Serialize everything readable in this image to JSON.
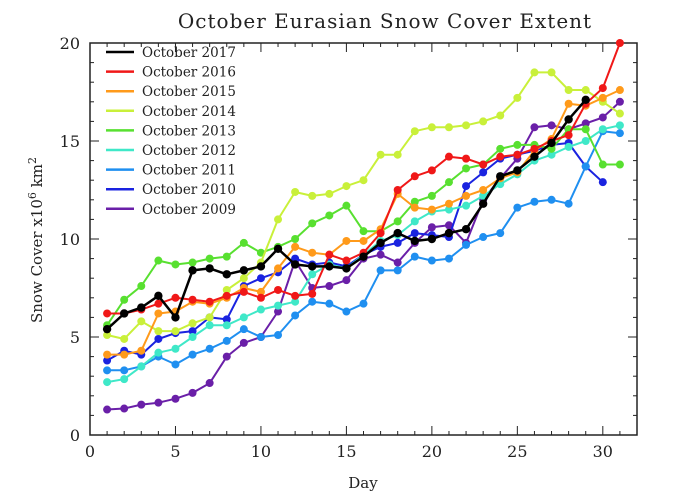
{
  "chart_data": {
    "type": "line",
    "title": "October Eurasian Snow Cover Extent",
    "xlabel": "Day",
    "ylabel_prefix": "Snow Cover x10",
    "ylabel_exp": "6",
    "ylabel_suffix": " km",
    "ylabel_exp2": "2",
    "xlim": [
      0,
      32
    ],
    "ylim": [
      0,
      20
    ],
    "xticks": [
      0,
      5,
      10,
      15,
      20,
      25,
      30
    ],
    "yticks": [
      0,
      5,
      10,
      15,
      20
    ],
    "xtick_labels": [
      "0",
      "5",
      "10",
      "15",
      "20",
      "25",
      "30"
    ],
    "ytick_labels": [
      "0",
      "5",
      "10",
      "15",
      "20"
    ],
    "grid": false,
    "legend_position": "top-left",
    "series": [
      {
        "name": "October 2009",
        "color": "#6a1fa8",
        "width": 2,
        "x": [
          1,
          2,
          3,
          4,
          5,
          6,
          7,
          8,
          9,
          10,
          11,
          12,
          13,
          14,
          15,
          16,
          17,
          18,
          19,
          20,
          21,
          22,
          23,
          24,
          25,
          26,
          27,
          28,
          29,
          30,
          31
        ],
        "y": [
          1.3,
          1.35,
          1.55,
          1.65,
          1.85,
          2.15,
          2.65,
          4.0,
          4.7,
          5.0,
          6.3,
          8.9,
          7.5,
          7.6,
          7.9,
          9.0,
          9.2,
          8.8,
          9.8,
          10.6,
          10.7,
          9.8,
          12.0,
          13.1,
          14.1,
          15.7,
          15.8,
          15.6,
          15.9,
          16.2,
          17.0
        ]
      },
      {
        "name": "October 2010",
        "color": "#1a23e0",
        "width": 2,
        "x": [
          1,
          2,
          3,
          4,
          5,
          6,
          7,
          8,
          9,
          10,
          11,
          12,
          13,
          14,
          15,
          16,
          17,
          18,
          19,
          20,
          21,
          22,
          23,
          24,
          25,
          26,
          27,
          28,
          29,
          30
        ],
        "y": [
          3.8,
          4.3,
          4.1,
          4.9,
          5.2,
          5.3,
          6.0,
          5.9,
          7.6,
          8.0,
          8.3,
          9.0,
          8.7,
          8.8,
          8.6,
          9.2,
          9.6,
          9.8,
          10.3,
          10.2,
          10.1,
          12.7,
          13.4,
          14.1,
          14.3,
          14.5,
          14.8,
          14.9,
          13.7,
          12.9
        ]
      },
      {
        "name": "October 2011",
        "color": "#1f8ff0",
        "width": 2,
        "x": [
          1,
          2,
          3,
          4,
          5,
          6,
          7,
          8,
          9,
          10,
          11,
          12,
          13,
          14,
          15,
          16,
          17,
          18,
          19,
          20,
          21,
          22,
          23,
          24,
          25,
          26,
          27,
          28,
          29,
          30,
          31
        ],
        "y": [
          3.3,
          3.3,
          3.5,
          4.0,
          3.6,
          4.1,
          4.4,
          4.8,
          5.4,
          5.0,
          5.1,
          6.1,
          6.8,
          6.7,
          6.3,
          6.7,
          8.4,
          8.4,
          9.1,
          8.9,
          9.0,
          9.7,
          10.1,
          10.3,
          11.6,
          11.9,
          12.0,
          11.8,
          13.7,
          15.5,
          15.4
        ]
      },
      {
        "name": "October 2012",
        "color": "#3fe8c8",
        "width": 2,
        "x": [
          1,
          2,
          3,
          4,
          5,
          6,
          7,
          8,
          9,
          10,
          11,
          12,
          13,
          14,
          15,
          16,
          17,
          18,
          19,
          20,
          21,
          22,
          23,
          24,
          25,
          26,
          27,
          28,
          29,
          30,
          31
        ],
        "y": [
          2.7,
          2.85,
          3.5,
          4.2,
          4.4,
          5.0,
          5.6,
          5.6,
          6.0,
          6.4,
          6.6,
          6.8,
          8.2,
          8.7,
          8.5,
          9.2,
          9.9,
          10.2,
          10.9,
          11.4,
          11.5,
          11.7,
          12.2,
          12.8,
          13.3,
          14.0,
          14.3,
          14.7,
          15.0,
          15.6,
          15.8
        ]
      },
      {
        "name": "October 2013",
        "color": "#58e030",
        "width": 2,
        "x": [
          1,
          2,
          3,
          4,
          5,
          6,
          7,
          8,
          9,
          10,
          11,
          12,
          13,
          14,
          15,
          16,
          17,
          18,
          19,
          20,
          21,
          22,
          23,
          24,
          25,
          26,
          27,
          28,
          29,
          30,
          31
        ],
        "y": [
          5.6,
          6.9,
          7.6,
          8.9,
          8.7,
          8.8,
          9.0,
          9.1,
          9.8,
          9.3,
          9.6,
          10.0,
          10.8,
          11.2,
          11.7,
          10.4,
          10.4,
          10.9,
          11.9,
          12.2,
          12.9,
          13.6,
          13.8,
          14.6,
          14.8,
          14.8,
          14.6,
          15.6,
          15.6,
          13.8,
          13.8
        ]
      },
      {
        "name": "October 2014",
        "color": "#c9f03a",
        "width": 2,
        "x": [
          1,
          2,
          3,
          4,
          5,
          6,
          7,
          8,
          9,
          10,
          11,
          12,
          13,
          14,
          15,
          16,
          17,
          18,
          19,
          20,
          21,
          22,
          23,
          24,
          25,
          26,
          27,
          28,
          29,
          30,
          31
        ],
        "y": [
          5.1,
          4.9,
          5.8,
          5.3,
          5.3,
          5.7,
          6.0,
          7.4,
          8.0,
          8.8,
          11.0,
          12.4,
          12.2,
          12.3,
          12.7,
          13.0,
          14.3,
          14.3,
          15.5,
          15.7,
          15.7,
          15.8,
          16.0,
          16.3,
          17.2,
          18.5,
          18.5,
          17.6,
          17.6,
          17.0,
          16.4
        ]
      },
      {
        "name": "October 2015",
        "color": "#ff9a1a",
        "width": 2,
        "x": [
          1,
          2,
          3,
          4,
          5,
          6,
          7,
          8,
          9,
          10,
          11,
          12,
          13,
          14,
          15,
          16,
          17,
          18,
          19,
          20,
          21,
          22,
          23,
          24,
          25,
          26,
          27,
          28,
          29,
          30,
          31
        ],
        "y": [
          4.1,
          4.1,
          4.3,
          6.2,
          6.3,
          6.8,
          6.7,
          7.0,
          7.5,
          7.3,
          8.5,
          9.6,
          9.3,
          9.2,
          9.9,
          9.9,
          10.5,
          12.3,
          11.6,
          11.5,
          11.8,
          12.2,
          12.5,
          13.1,
          13.4,
          14.5,
          15.1,
          16.9,
          16.8,
          17.2,
          17.6
        ]
      },
      {
        "name": "October 2016",
        "color": "#f01818",
        "width": 2,
        "x": [
          1,
          2,
          3,
          4,
          5,
          6,
          7,
          8,
          9,
          10,
          11,
          12,
          13,
          14,
          15,
          16,
          17,
          18,
          19,
          20,
          21,
          22,
          23,
          24,
          25,
          26,
          27,
          28,
          29,
          30,
          31
        ],
        "y": [
          6.2,
          6.2,
          6.4,
          6.7,
          7.0,
          6.9,
          6.8,
          7.1,
          7.3,
          7.0,
          7.4,
          7.1,
          7.2,
          9.2,
          8.9,
          9.3,
          10.3,
          12.5,
          13.2,
          13.5,
          14.2,
          14.1,
          13.8,
          14.2,
          14.3,
          14.6,
          15.0,
          15.3,
          16.9,
          17.7,
          20.0
        ]
      },
      {
        "name": "October 2017",
        "color": "#000000",
        "width": 2.5,
        "x": [
          1,
          2,
          3,
          4,
          5,
          6,
          7,
          8,
          9,
          10,
          11,
          12,
          13,
          14,
          15,
          16,
          17,
          18,
          19,
          20,
          21,
          22,
          23,
          24,
          25,
          26,
          27,
          28,
          29
        ],
        "y": [
          5.4,
          6.2,
          6.5,
          7.1,
          6.0,
          8.4,
          8.5,
          8.2,
          8.4,
          8.6,
          9.5,
          8.7,
          8.6,
          8.6,
          8.5,
          9.1,
          9.8,
          10.3,
          9.9,
          10.0,
          10.3,
          10.5,
          11.8,
          13.2,
          13.5,
          14.2,
          14.9,
          16.1,
          17.1
        ]
      }
    ],
    "legend_order": [
      "October 2017",
      "October 2016",
      "October 2015",
      "October 2014",
      "October 2013",
      "October 2012",
      "October 2011",
      "October 2010",
      "October 2009"
    ]
  }
}
